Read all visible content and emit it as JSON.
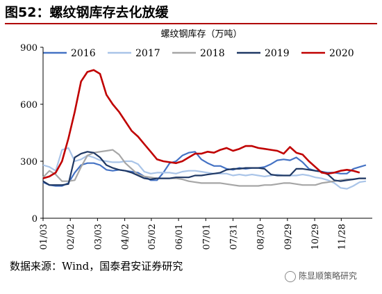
{
  "figure": {
    "title": "图52：螺纹钢库存去化放缓",
    "source": "数据来源：Wind，国泰君安证券研究",
    "watermark": "陈显顺策略研究"
  },
  "chart_data": {
    "type": "line",
    "title": "螺纹钢库存（万吨）",
    "xlabel": "",
    "ylabel": "",
    "ylim": [
      0,
      900
    ],
    "yticks": [
      0,
      300,
      600,
      900
    ],
    "xticks": [
      "01/03",
      "02/02",
      "03/03",
      "04/02",
      "05/02",
      "06/01",
      "07/01",
      "07/31",
      "08/30",
      "09/29",
      "10/29",
      "11/28"
    ],
    "x_positions": [
      0,
      4.3,
      8.6,
      12.9,
      17.1,
      21.4,
      25.7,
      30,
      34.3,
      38.6,
      42.9,
      47.1
    ],
    "x_range": [
      0,
      52
    ],
    "grid": false,
    "legend": "top",
    "series": [
      {
        "name": "2016",
        "color": "#4472c4",
        "x": [
          0,
          1,
          2,
          3,
          4,
          5,
          6,
          7,
          8,
          9,
          10,
          11,
          12,
          13,
          14,
          15,
          16,
          17,
          18,
          19,
          20,
          21,
          22,
          23,
          24,
          25,
          26,
          27,
          28,
          29,
          30,
          31,
          32,
          33,
          34,
          35,
          36,
          37,
          38,
          39,
          40,
          41,
          42,
          43,
          44,
          45,
          46,
          47,
          48,
          49,
          50,
          51
        ],
        "values": [
          190,
          175,
          170,
          170,
          185,
          240,
          280,
          290,
          290,
          280,
          255,
          250,
          255,
          250,
          245,
          240,
          220,
          200,
          200,
          240,
          290,
          300,
          330,
          345,
          350,
          310,
          290,
          275,
          275,
          260,
          255,
          265,
          260,
          265,
          265,
          270,
          285,
          305,
          310,
          305,
          320,
          295,
          260,
          250,
          245,
          240,
          240,
          235,
          235,
          260,
          270,
          280
        ]
      },
      {
        "name": "2017",
        "color": "#a9c4e8",
        "x": [
          0,
          1,
          2,
          3,
          4,
          5,
          6,
          7,
          8,
          9,
          10,
          11,
          12,
          13,
          14,
          15,
          16,
          17,
          18,
          19,
          20,
          21,
          22,
          23,
          24,
          25,
          26,
          27,
          28,
          29,
          30,
          31,
          32,
          33,
          34,
          35,
          36,
          37,
          38,
          39,
          40,
          41,
          42,
          43,
          44,
          45,
          46,
          47,
          48,
          49,
          50,
          51
        ],
        "values": [
          280,
          270,
          250,
          360,
          370,
          300,
          310,
          330,
          320,
          305,
          300,
          295,
          295,
          300,
          300,
          285,
          245,
          235,
          240,
          240,
          240,
          235,
          245,
          250,
          250,
          245,
          240,
          235,
          235,
          235,
          225,
          230,
          225,
          230,
          225,
          220,
          225,
          230,
          225,
          225,
          225,
          230,
          225,
          215,
          210,
          200,
          185,
          160,
          155,
          170,
          190,
          195
        ]
      },
      {
        "name": "2018",
        "color": "#a6a6a6",
        "x": [
          0,
          1,
          2,
          3,
          4,
          5,
          6,
          7,
          8,
          9,
          10,
          11,
          12,
          13,
          14,
          15,
          16,
          17,
          18,
          19,
          20,
          21,
          22,
          23,
          24,
          25,
          26,
          27,
          28,
          29,
          30,
          31,
          32,
          33,
          34,
          35,
          36,
          37,
          38,
          39,
          40,
          41,
          42,
          43,
          44,
          45,
          46,
          47,
          48,
          49,
          50,
          51
        ],
        "values": [
          215,
          250,
          230,
          195,
          195,
          200,
          270,
          330,
          345,
          350,
          355,
          360,
          335,
          290,
          260,
          230,
          220,
          215,
          210,
          210,
          210,
          210,
          205,
          195,
          190,
          185,
          185,
          185,
          185,
          180,
          175,
          170,
          170,
          170,
          170,
          175,
          175,
          180,
          185,
          185,
          180,
          175,
          175,
          175,
          185,
          190,
          195,
          200,
          205,
          205,
          210,
          210
        ]
      },
      {
        "name": "2019",
        "color": "#1f3864",
        "x": [
          0,
          1,
          2,
          3,
          4,
          5,
          6,
          7,
          8,
          9,
          10,
          11,
          12,
          13,
          14,
          15,
          16,
          17,
          18,
          19,
          20,
          21,
          22,
          23,
          24,
          25,
          26,
          27,
          28,
          29,
          30,
          31,
          32,
          33,
          34,
          35,
          36,
          37,
          38,
          39,
          40,
          41,
          42,
          43,
          44,
          45,
          46,
          47,
          48,
          49,
          50,
          51
        ],
        "values": [
          195,
          175,
          175,
          175,
          180,
          320,
          340,
          350,
          345,
          320,
          280,
          265,
          255,
          250,
          240,
          225,
          210,
          205,
          210,
          210,
          210,
          215,
          215,
          215,
          225,
          225,
          230,
          235,
          240,
          255,
          260,
          260,
          265,
          265,
          265,
          260,
          230,
          225,
          225,
          225,
          260,
          260,
          255,
          250,
          245,
          230,
          200,
          195,
          200,
          205,
          210,
          210
        ]
      },
      {
        "name": "2020",
        "color": "#c00000",
        "x": [
          0,
          1,
          2,
          3,
          4,
          5,
          6,
          7,
          8,
          9,
          10,
          11,
          12,
          13,
          14,
          15,
          16,
          17,
          18,
          19,
          20,
          21,
          22,
          23,
          24,
          25,
          26,
          27,
          28,
          29,
          30,
          31,
          32,
          33,
          34,
          35,
          36,
          37,
          38,
          39,
          40,
          41,
          42,
          43,
          44,
          45,
          46,
          47,
          48,
          49,
          50
        ],
        "values": [
          210,
          220,
          240,
          300,
          420,
          560,
          720,
          770,
          780,
          760,
          650,
          600,
          560,
          510,
          460,
          430,
          390,
          350,
          310,
          300,
          295,
          290,
          300,
          320,
          340,
          340,
          350,
          345,
          360,
          370,
          355,
          365,
          380,
          380,
          370,
          365,
          360,
          355,
          340,
          375,
          345,
          335,
          300,
          270,
          240,
          235,
          240,
          250,
          255,
          250,
          240
        ]
      }
    ]
  }
}
